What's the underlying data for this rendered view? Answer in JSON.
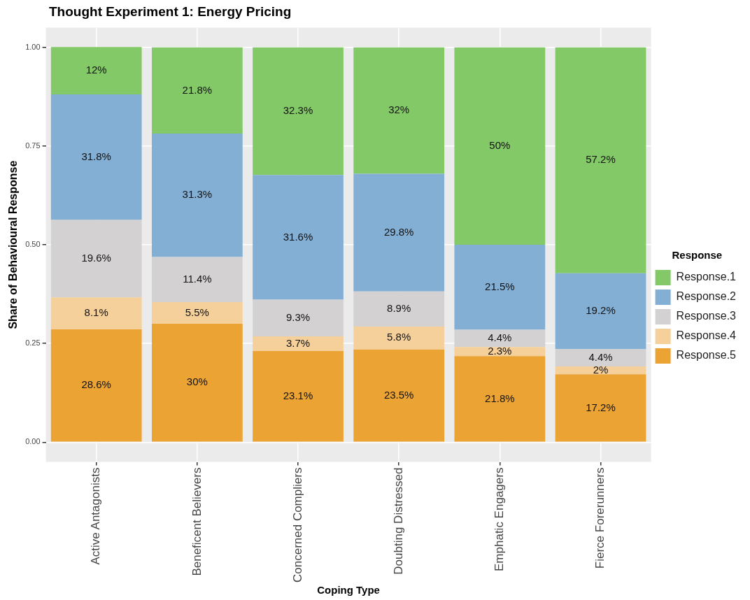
{
  "chart_data": {
    "type": "bar",
    "title": "Thought Experiment 1: Energy Pricing",
    "xlabel": "Coping Type",
    "ylabel": "Share of Behavioural Response",
    "legend_title": "Response",
    "legend": "right",
    "stacked": true,
    "grid": true,
    "categories": [
      "Active Antagonists",
      "Beneficent Believers",
      "Concerned Compliers",
      "Doubting Distressed",
      "Emphatic Engagers",
      "Fierce Forerunners"
    ],
    "ylim": [
      -0.05,
      1.05
    ],
    "yticks": [
      {
        "value": 0,
        "label": "0.00"
      },
      {
        "value": 0.25,
        "label": "0.25"
      },
      {
        "value": 0.5,
        "label": "0.50"
      },
      {
        "value": 0.75,
        "label": "0.75"
      },
      {
        "value": 1,
        "label": "1.00"
      }
    ],
    "series": [
      {
        "name": "Response.5",
        "color": "#eba334",
        "values": [
          0.286,
          0.3,
          0.231,
          0.235,
          0.218,
          0.172
        ],
        "value_labels": [
          "28.6%",
          "30%",
          "23.1%",
          "23.5%",
          "21.8%",
          "17.2%"
        ]
      },
      {
        "name": "Response.4",
        "color": "#f6d09a",
        "values": [
          0.081,
          0.055,
          0.037,
          0.058,
          0.023,
          0.02
        ],
        "value_labels": [
          "8.1%",
          "5.5%",
          "3.7%",
          "5.8%",
          "2.3%",
          "2%"
        ]
      },
      {
        "name": "Response.3",
        "color": "#d3d1d2",
        "values": [
          0.196,
          0.114,
          0.093,
          0.089,
          0.044,
          0.044
        ],
        "value_labels": [
          "19.6%",
          "11.4%",
          "9.3%",
          "8.9%",
          "4.4%",
          "4.4%"
        ]
      },
      {
        "name": "Response.2",
        "color": "#84afd5",
        "values": [
          0.318,
          0.313,
          0.316,
          0.298,
          0.215,
          0.192
        ],
        "value_labels": [
          "31.8%",
          "31.3%",
          "31.6%",
          "29.8%",
          "21.5%",
          "19.2%"
        ]
      },
      {
        "name": "Response.1",
        "color": "#84c967",
        "values": [
          0.12,
          0.218,
          0.323,
          0.32,
          0.5,
          0.572
        ],
        "value_labels": [
          "12%",
          "21.8%",
          "32.3%",
          "32%",
          "50%",
          "57.2%"
        ]
      }
    ]
  }
}
